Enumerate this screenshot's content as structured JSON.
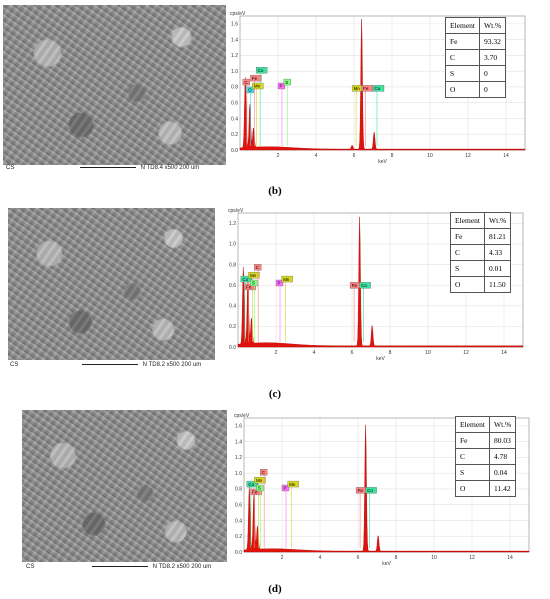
{
  "panels": [
    {
      "sem": {
        "label": "CS",
        "detector": "N",
        "wd": "TD8.4",
        "mag": "x500",
        "scale": "200 um"
      },
      "chart_data": {
        "type": "area",
        "ylabel": "cps/eV",
        "xlabel": "keV",
        "ylim": [
          0,
          1.7
        ],
        "xlim": [
          0,
          15
        ],
        "yticks": [
          "1.6",
          "1.4",
          "1.2",
          "1.0",
          "0.8",
          "0.6",
          "0.4",
          "0.2",
          "0.0"
        ],
        "xticks": [
          "2",
          "4",
          "6",
          "8",
          "10",
          "12",
          "14"
        ],
        "peaks": [
          {
            "x": 0.28,
            "y": 0.9
          },
          {
            "x": 0.52,
            "y": 0.55
          },
          {
            "x": 0.71,
            "y": 0.25
          },
          {
            "x": 6.4,
            "y": 1.65
          },
          {
            "x": 7.06,
            "y": 0.22
          },
          {
            "x": 5.9,
            "y": 0.05
          }
        ],
        "element_tags": [
          "C",
          "Fe",
          "Co",
          "O",
          "Mn",
          "P",
          "S",
          "Mn",
          "Fe",
          "Co"
        ]
      },
      "table": {
        "headers": [
          "Element",
          "Wt.%"
        ],
        "rows": [
          [
            "Fe",
            "93.32"
          ],
          [
            "C",
            "3.70"
          ],
          [
            "S",
            "0"
          ],
          [
            "O",
            "0"
          ]
        ]
      },
      "caption": "(b)"
    },
    {
      "sem": {
        "label": "CS",
        "detector": "N",
        "wd": "TD8.2",
        "mag": "x500",
        "scale": "200 um"
      },
      "chart_data": {
        "type": "area",
        "ylabel": "cps/eV",
        "xlabel": "keV",
        "ylim": [
          0,
          1.3
        ],
        "xlim": [
          0,
          15
        ],
        "yticks": [
          "1.2",
          "1.0",
          "0.8",
          "0.6",
          "0.4",
          "0.2",
          "0.0"
        ],
        "xticks": [
          "2",
          "4",
          "6",
          "8",
          "10",
          "12",
          "14"
        ],
        "peaks": [
          {
            "x": 0.28,
            "y": 0.75
          },
          {
            "x": 0.52,
            "y": 0.6
          },
          {
            "x": 0.71,
            "y": 0.25
          },
          {
            "x": 6.4,
            "y": 1.25
          },
          {
            "x": 7.06,
            "y": 0.2
          }
        ],
        "element_tags": [
          "Co",
          "Mn",
          "C",
          "Fe",
          "S",
          "P",
          "Mn",
          "Fe",
          "Co"
        ]
      },
      "table": {
        "headers": [
          "Element",
          "Wt.%"
        ],
        "rows": [
          [
            "Fe",
            "81.21"
          ],
          [
            "C",
            "4.33"
          ],
          [
            "S",
            "0.01"
          ],
          [
            "O",
            "11.50"
          ]
        ]
      },
      "caption": "(c)"
    },
    {
      "sem": {
        "label": "CS",
        "detector": "N",
        "wd": "TD8.2",
        "mag": "x500",
        "scale": "200 um"
      },
      "chart_data": {
        "type": "area",
        "ylabel": "cps/eV",
        "xlabel": "keV",
        "ylim": [
          0,
          1.7
        ],
        "xlim": [
          0,
          15
        ],
        "yticks": [
          "1.6",
          "1.4",
          "1.2",
          "1.0",
          "0.8",
          "0.6",
          "0.4",
          "0.2",
          "0.0"
        ],
        "xticks": [
          "2",
          "4",
          "6",
          "8",
          "10",
          "12",
          "14"
        ],
        "peaks": [
          {
            "x": 0.28,
            "y": 0.8
          },
          {
            "x": 0.52,
            "y": 0.7
          },
          {
            "x": 0.71,
            "y": 0.3
          },
          {
            "x": 6.4,
            "y": 1.6
          },
          {
            "x": 7.06,
            "y": 0.2
          }
        ],
        "element_tags": [
          "Co",
          "Mn",
          "C",
          "Fe",
          "S",
          "P",
          "Mn",
          "Fe",
          "Co"
        ]
      },
      "table": {
        "headers": [
          "Element",
          "Wt.%"
        ],
        "rows": [
          [
            "Fe",
            "80.03"
          ],
          [
            "C",
            "4.78"
          ],
          [
            "S",
            "0.04"
          ],
          [
            "O",
            "11.42"
          ]
        ]
      },
      "caption": "(d)"
    }
  ]
}
